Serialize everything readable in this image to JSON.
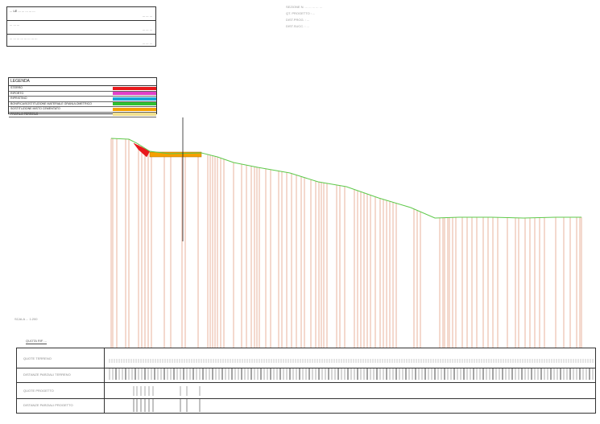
{
  "title_block": {
    "rows": [
      {
        "label": "... LE ... ... ... ... ...",
        "value": "... ... ..."
      },
      {
        "label": "... ... ...",
        "value": "... ... ..."
      },
      {
        "label": "... ... ... ... ... ... ... ...",
        "value": "... ... ..."
      }
    ]
  },
  "section_info": {
    "lines": [
      "SEZIONE N. ... ... ... ... ...",
      "QT. PROGETTO : ...",
      "DIST.PROG. : ...",
      "DIST.SUCC. : ..."
    ]
  },
  "legend": {
    "title": "LEGENDA",
    "items": [
      {
        "label": "STERRO",
        "color": "#e8191c"
      },
      {
        "label": "RIPORTO",
        "color": "#e040c8"
      },
      {
        "label": "RIPRISTINO",
        "color": "#18a4d8"
      },
      {
        "label": "BONIFICA/SOSTITUZIONE MATERIALE GRANULOMETRICO",
        "color": "#30c030"
      },
      {
        "label": "SOSTITUZIONE MISTO CEMENTATO",
        "color": "#f5a000"
      },
      {
        "label": "PROFILO TERRENO",
        "color": "#f0e090"
      }
    ]
  },
  "scale_label": "SCALA ... 1:200",
  "datum_label": "QUOTA RIF. ...",
  "guitar_table": {
    "rows": [
      {
        "label": "QUOTE TERRENO"
      },
      {
        "label": "DISTANZE PARZIALI TERRENO"
      },
      {
        "label": "QUOTE PROGETTO"
      },
      {
        "label": "DISTANZE PARZIALI PROGETTO"
      }
    ]
  },
  "colors": {
    "terrain": "#5ec94a",
    "verticals": "#d9805a",
    "cut": "#e8191c",
    "fill": "#f5a000",
    "axis": "#222222"
  }
}
